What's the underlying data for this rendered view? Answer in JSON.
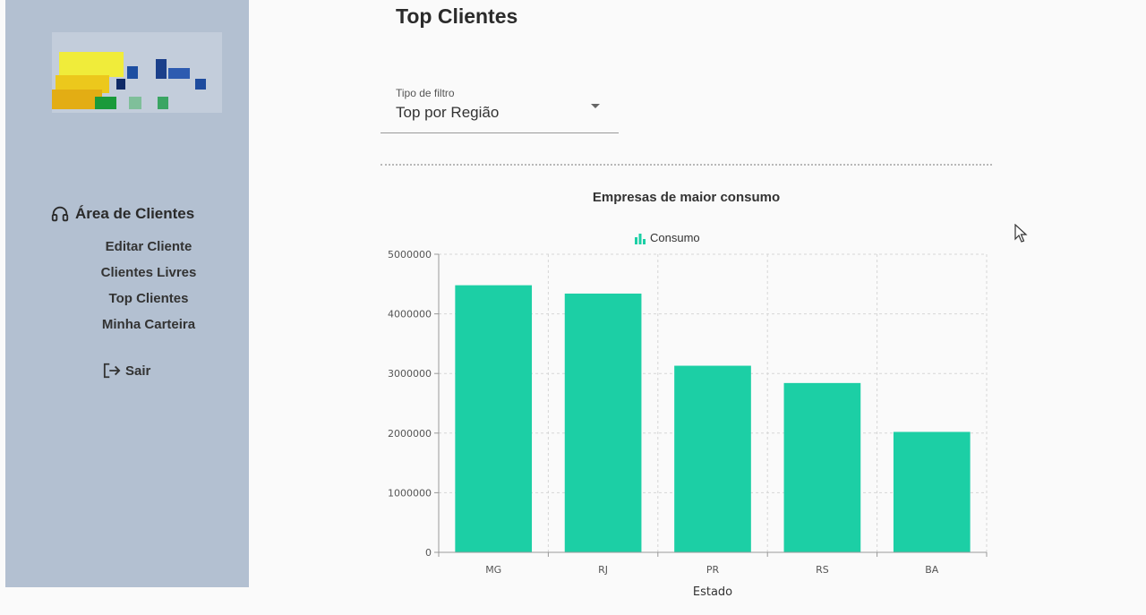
{
  "sidebar": {
    "section_label": "Área de Clientes",
    "items": [
      {
        "label": "Editar Cliente"
      },
      {
        "label": "Clientes Livres"
      },
      {
        "label": "Top Clientes"
      },
      {
        "label": "Minha Carteira"
      }
    ],
    "logout_label": "Sair",
    "background": "#b3c0d1"
  },
  "main": {
    "title": "Top Clientes",
    "filter": {
      "label": "Tipo de filtro",
      "value": "Top por Região"
    }
  },
  "colors": {
    "bar": "#1ccfa5"
  },
  "chart_data": {
    "type": "bar",
    "title": "Empresas de maior consumo",
    "xlabel": "Estado",
    "ylabel": "",
    "categories": [
      "MG",
      "RJ",
      "PR",
      "RS",
      "BA"
    ],
    "series": [
      {
        "name": "Consumo",
        "values": [
          4480000,
          4340000,
          3130000,
          2840000,
          2020000
        ]
      }
    ],
    "ylim": [
      0,
      5000000
    ],
    "yticks": [
      "0",
      "1000000",
      "2000000",
      "3000000",
      "4000000",
      "5000000"
    ],
    "grid": true,
    "legend_position": "top-center"
  }
}
